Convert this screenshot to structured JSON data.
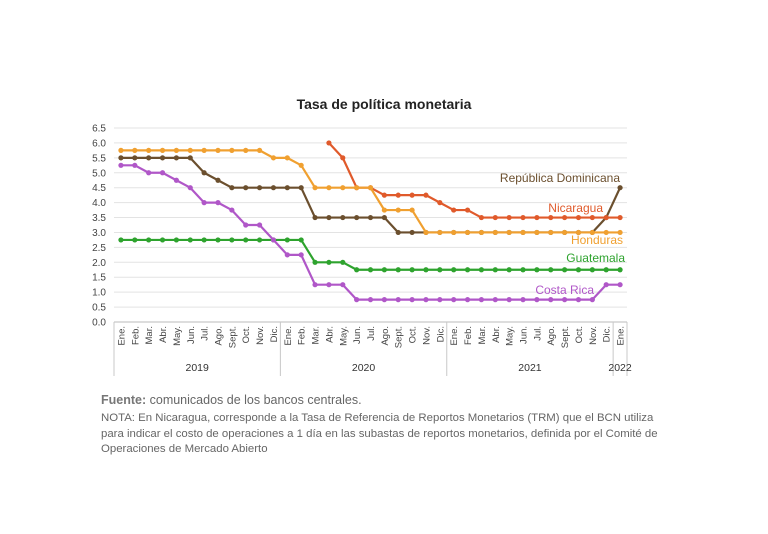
{
  "chart_data": {
    "type": "line",
    "title": "Tasa de política monetaria",
    "y_ticks": [
      "0.0",
      "0.5",
      "1.0",
      "1.5",
      "2.0",
      "2.5",
      "3.0",
      "3.5",
      "4.0",
      "4.5",
      "5.0",
      "5.5",
      "6.0",
      "6.5"
    ],
    "ylim": [
      0,
      6.5
    ],
    "grid": true,
    "legend": "none",
    "categories": [
      "Ene.",
      "Feb.",
      "Mar.",
      "Abr.",
      "May.",
      "Jun.",
      "Jul.",
      "Ago.",
      "Sept.",
      "Oct.",
      "Nov.",
      "Dic.",
      "Ene.",
      "Feb.",
      "Mar.",
      "Abr.",
      "May.",
      "Jun.",
      "Jul.",
      "Ago.",
      "Sept.",
      "Oct.",
      "Nov.",
      "Dic.",
      "Ene.",
      "Feb.",
      "Mar.",
      "Abr.",
      "May.",
      "Jun.",
      "Jul.",
      "Ago.",
      "Sept.",
      "Oct.",
      "Nov.",
      "Dic.",
      "Ene."
    ],
    "years": [
      {
        "label": "2019",
        "start": 0,
        "end": 11
      },
      {
        "label": "2020",
        "start": 12,
        "end": 23
      },
      {
        "label": "2021",
        "start": 24,
        "end": 35
      },
      {
        "label": "2022",
        "start": 36,
        "end": 36
      }
    ],
    "series": [
      {
        "name": "República Dominicana",
        "color": "#6b4f2e",
        "values": [
          5.5,
          5.5,
          5.5,
          5.5,
          5.5,
          5.5,
          5.0,
          4.75,
          4.5,
          4.5,
          4.5,
          4.5,
          4.5,
          4.5,
          3.5,
          3.5,
          3.5,
          3.5,
          3.5,
          3.5,
          3.0,
          3.0,
          3.0,
          3.0,
          3.0,
          3.0,
          3.0,
          3.0,
          3.0,
          3.0,
          3.0,
          3.0,
          3.0,
          3.0,
          3.0,
          3.5,
          4.5
        ]
      },
      {
        "name": "Nicaragua",
        "color": "#e05a2b",
        "values": [
          null,
          null,
          null,
          null,
          null,
          null,
          null,
          null,
          null,
          null,
          null,
          null,
          null,
          null,
          null,
          6.0,
          5.5,
          4.5,
          4.5,
          4.25,
          4.25,
          4.25,
          4.25,
          4.0,
          3.75,
          3.75,
          3.5,
          3.5,
          3.5,
          3.5,
          3.5,
          3.5,
          3.5,
          3.5,
          3.5,
          3.5,
          3.5
        ]
      },
      {
        "name": "Honduras",
        "color": "#f0a030",
        "values": [
          5.75,
          5.75,
          5.75,
          5.75,
          5.75,
          5.75,
          5.75,
          5.75,
          5.75,
          5.75,
          5.75,
          5.5,
          5.5,
          5.25,
          4.5,
          4.5,
          4.5,
          4.5,
          4.5,
          3.75,
          3.75,
          3.75,
          3.0,
          3.0,
          3.0,
          3.0,
          3.0,
          3.0,
          3.0,
          3.0,
          3.0,
          3.0,
          3.0,
          3.0,
          3.0,
          3.0,
          3.0
        ]
      },
      {
        "name": "Guatemala",
        "color": "#2ea32e",
        "values": [
          2.75,
          2.75,
          2.75,
          2.75,
          2.75,
          2.75,
          2.75,
          2.75,
          2.75,
          2.75,
          2.75,
          2.75,
          2.75,
          2.75,
          2.0,
          2.0,
          2.0,
          1.75,
          1.75,
          1.75,
          1.75,
          1.75,
          1.75,
          1.75,
          1.75,
          1.75,
          1.75,
          1.75,
          1.75,
          1.75,
          1.75,
          1.75,
          1.75,
          1.75,
          1.75,
          1.75,
          1.75
        ]
      },
      {
        "name": "Costa Rica",
        "color": "#b057c8",
        "values": [
          5.25,
          5.25,
          5.0,
          5.0,
          4.75,
          4.5,
          4.0,
          4.0,
          3.75,
          3.25,
          3.25,
          2.75,
          2.25,
          2.25,
          1.25,
          1.25,
          1.25,
          0.75,
          0.75,
          0.75,
          0.75,
          0.75,
          0.75,
          0.75,
          0.75,
          0.75,
          0.75,
          0.75,
          0.75,
          0.75,
          0.75,
          0.75,
          0.75,
          0.75,
          0.75,
          1.25,
          1.25
        ]
      }
    ]
  },
  "source_label": "Fuente:",
  "source_text": " comunicados de los bancos centrales.",
  "nota": "NOTA: En Nicaragua, corresponde a la Tasa de Referencia de Reportos Monetarios (TRM) que el BCN utiliza para indicar el costo de operaciones a 1 día en las subastas de reportos monetarios, definida por el Comité de Operaciones de Mercado Abierto"
}
